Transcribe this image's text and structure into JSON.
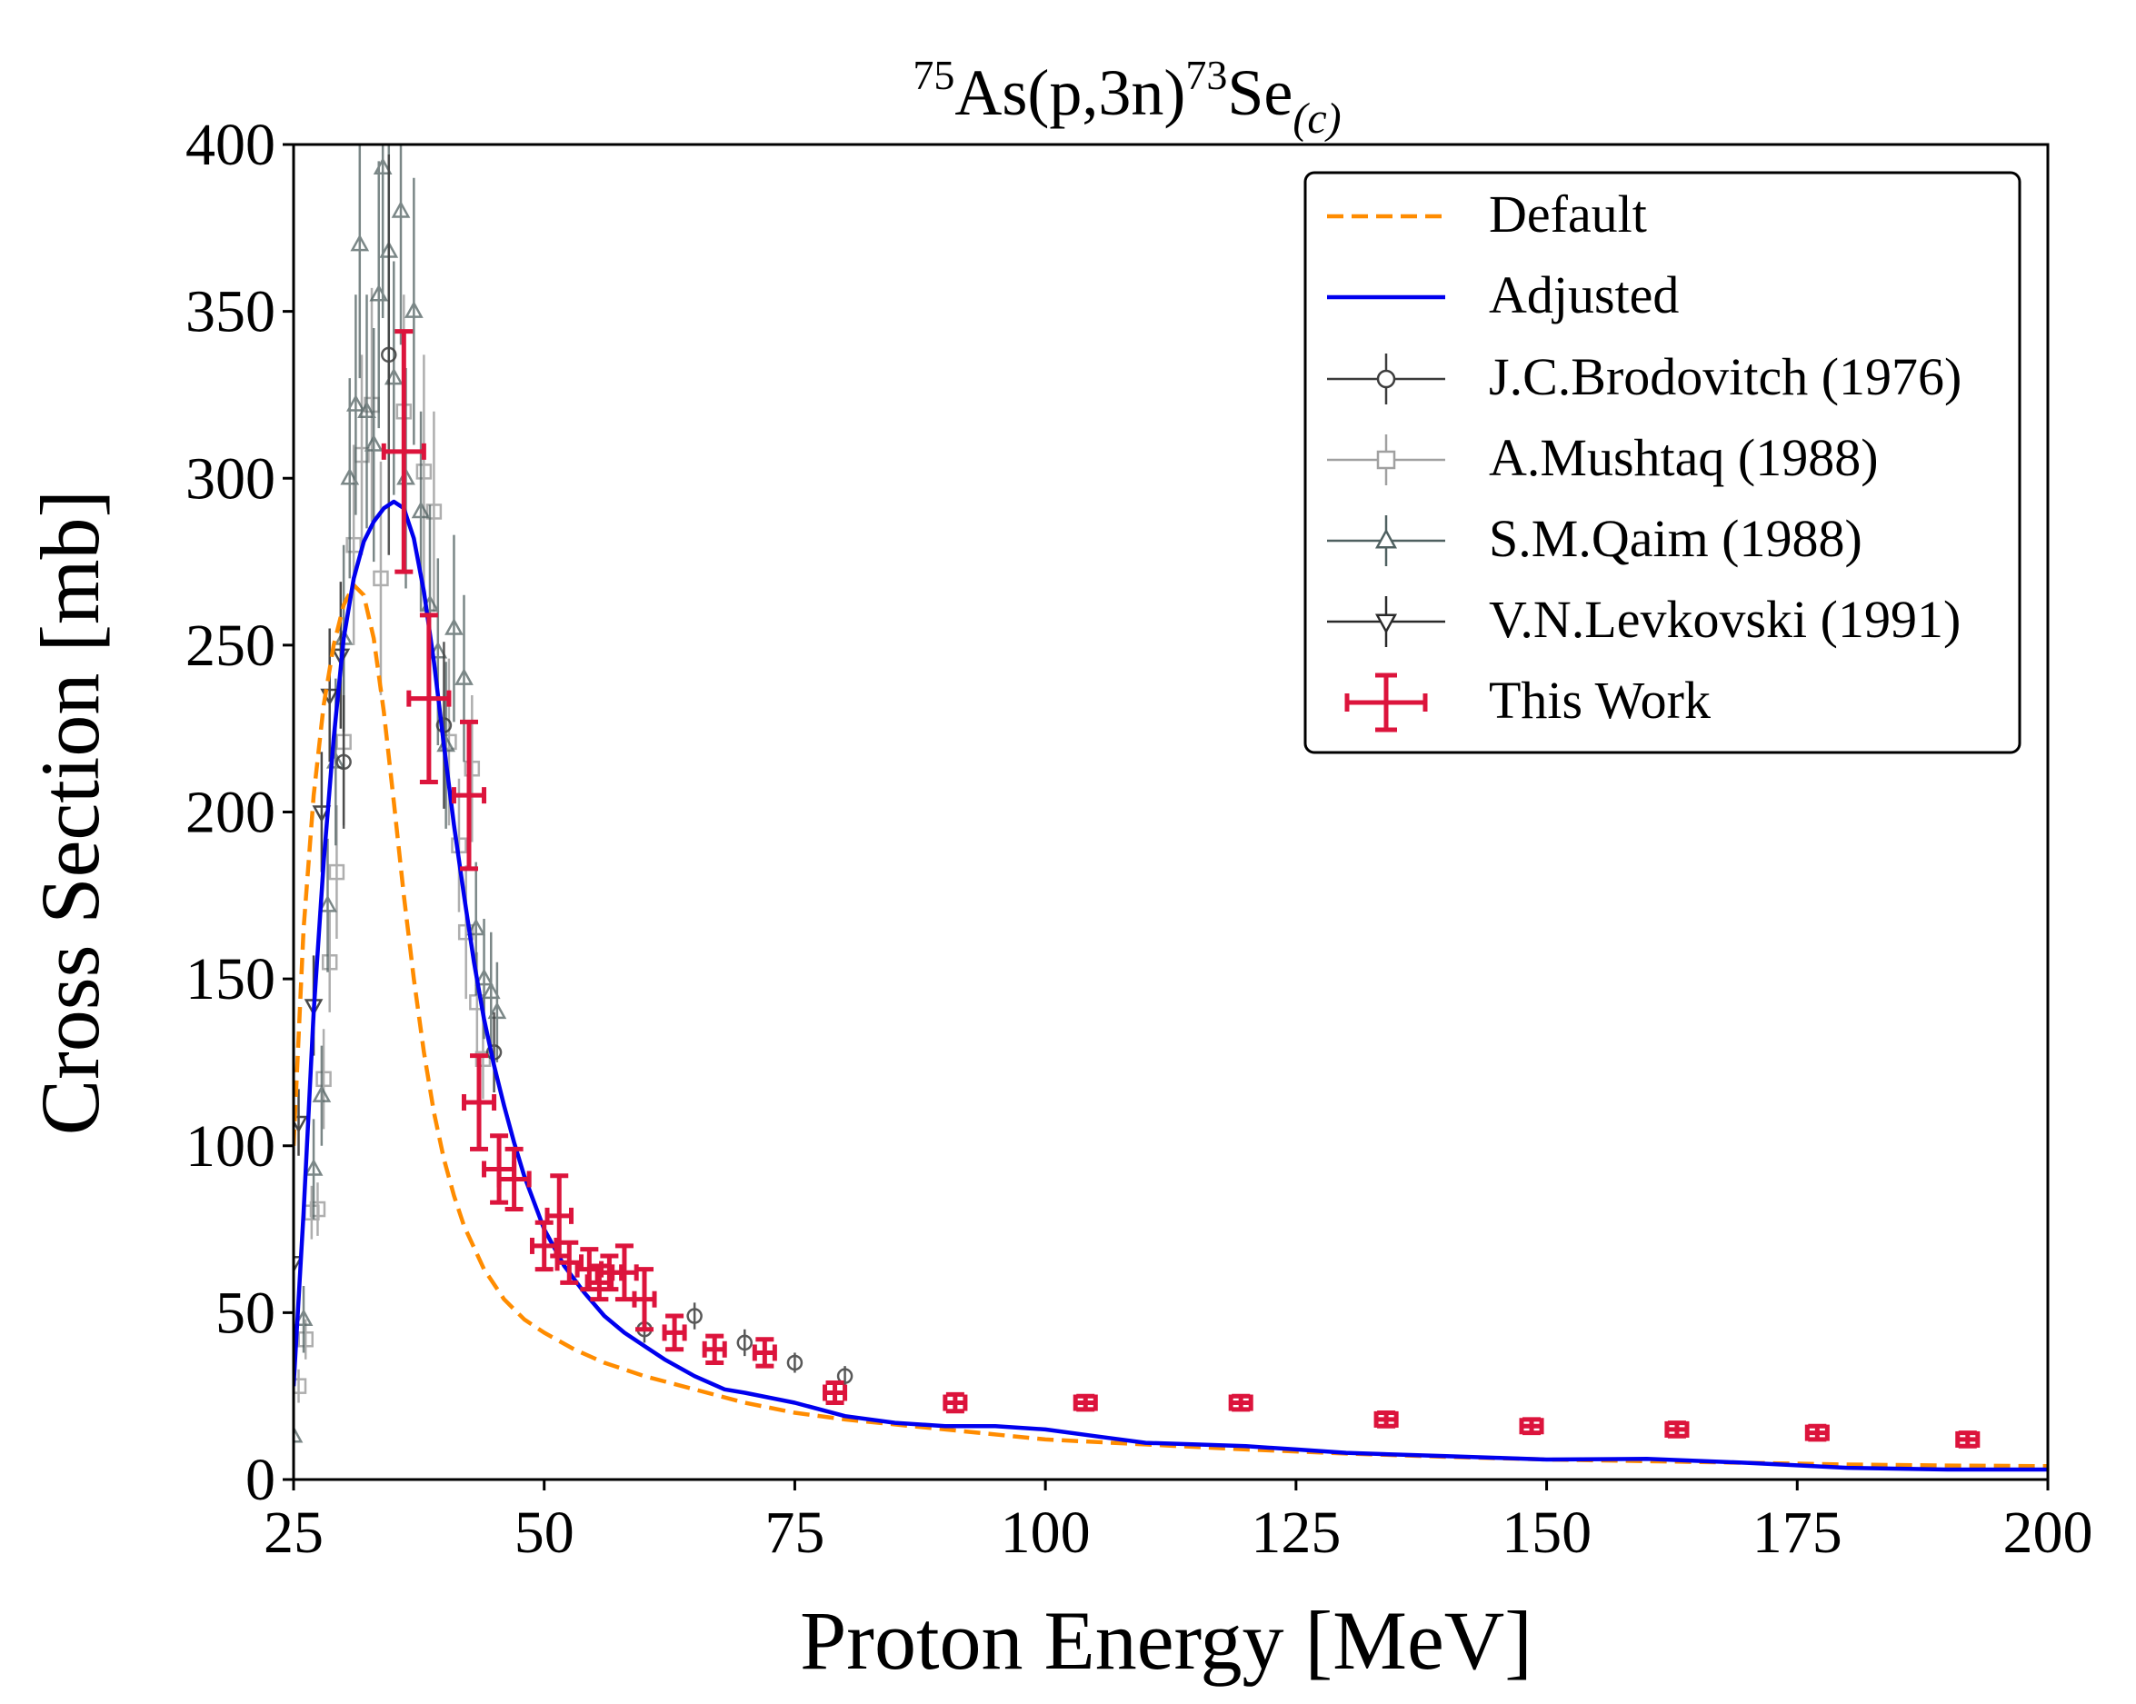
{
  "chart_data": {
    "type": "scatter",
    "title": {
      "prefix_sup": "75",
      "main": "As(p,3n)",
      "mid_sup": "73",
      "elem": "Se",
      "sub": "(c)"
    },
    "xlabel": "Proton Energy [MeV]",
    "ylabel": "Cross Section [mb]",
    "xlim": [
      25,
      200
    ],
    "ylim": [
      0,
      400
    ],
    "xticks": [
      25,
      50,
      75,
      100,
      125,
      150,
      175,
      200
    ],
    "yticks": [
      0,
      50,
      100,
      150,
      200,
      250,
      300,
      350,
      400
    ],
    "grid": false,
    "legend_position": "top-right",
    "legend": [
      {
        "label": "Default",
        "key": "default"
      },
      {
        "label": "Adjusted",
        "key": "adjusted"
      },
      {
        "label": "J.C.Brodovitch (1976)",
        "key": "brodovitch"
      },
      {
        "label": "A.Mushtaq (1988)",
        "key": "mushtaq"
      },
      {
        "label": "S.M.Qaim (1988)",
        "key": "qaim"
      },
      {
        "label": "V.N.Levkovski (1991)",
        "key": "levkovski"
      },
      {
        "label": "This Work",
        "key": "thiswork"
      }
    ],
    "colors": {
      "default": "#ff8c00",
      "adjusted": "#0000ee",
      "brodovitch": "#3c3c3c",
      "mushtaq": "#a0a0a0",
      "qaim": "#4f6060",
      "levkovski": "#2a2a2a",
      "thiswork": "#dc143c"
    },
    "series": [
      {
        "name": "Default",
        "key": "default",
        "style": "dashed",
        "x": [
          25,
          26,
          27,
          28,
          29,
          30,
          31,
          32,
          33,
          34,
          35,
          36,
          37,
          38,
          39,
          40,
          41,
          42,
          44,
          46,
          48,
          50,
          53,
          56,
          60,
          65,
          70,
          75,
          80,
          90,
          100,
          110,
          120,
          130,
          140,
          150,
          160,
          170,
          180,
          190,
          200
        ],
        "y": [
          100,
          165,
          205,
          232,
          250,
          262,
          268,
          265,
          252,
          230,
          203,
          175,
          150,
          128,
          110,
          96,
          85,
          76,
          63,
          54,
          48,
          44,
          39,
          35,
          31,
          27,
          23,
          20,
          18,
          15,
          12,
          10.5,
          9,
          7.8,
          6.8,
          6,
          5.5,
          5,
          4.5,
          4.2,
          4
        ]
      },
      {
        "name": "Adjusted",
        "key": "adjusted",
        "style": "solid",
        "x": [
          25,
          26,
          27,
          28,
          29,
          30,
          31,
          32,
          33,
          34,
          35,
          36,
          37,
          38,
          39,
          40,
          41,
          42,
          43,
          44,
          45,
          46,
          47,
          48,
          50,
          52,
          54,
          56,
          58,
          60,
          62,
          65,
          68,
          70,
          75,
          80,
          85,
          90,
          95,
          100,
          105,
          110,
          115,
          120,
          125,
          130,
          135,
          140,
          145,
          150,
          160,
          170,
          180,
          190,
          200
        ],
        "y": [
          28,
          80,
          140,
          185,
          222,
          252,
          270,
          281,
          287,
          291,
          293,
          291,
          282,
          266,
          245,
          220,
          196,
          175,
          155,
          138,
          124,
          112,
          101,
          91,
          75,
          64,
          56,
          49,
          44,
          40,
          36,
          31,
          27,
          26,
          23,
          19,
          17,
          16,
          16,
          15,
          13,
          11,
          10.5,
          10,
          9,
          8,
          7.5,
          7,
          6.5,
          6,
          6.2,
          5,
          3.5,
          3,
          3
        ]
      },
      {
        "name": "J.C.Brodovitch (1976)",
        "key": "brodovitch",
        "marker": "circle",
        "points": [
          [
            30,
            215,
            20
          ],
          [
            34.5,
            337,
            60
          ],
          [
            40,
            226,
            25
          ],
          [
            45,
            128,
            12
          ],
          [
            60,
            45,
            4
          ],
          [
            65,
            49,
            4
          ],
          [
            70,
            41,
            4
          ],
          [
            75,
            35,
            3
          ],
          [
            80,
            31,
            3
          ]
        ]
      },
      {
        "name": "A.Mushtaq (1988)",
        "key": "mushtaq",
        "marker": "square",
        "points": [
          [
            25.5,
            28,
            5
          ],
          [
            26.2,
            42,
            6
          ],
          [
            26.8,
            80,
            8
          ],
          [
            27.4,
            81,
            8
          ],
          [
            28,
            120,
            15
          ],
          [
            28.6,
            155,
            15
          ],
          [
            29.3,
            182,
            20
          ],
          [
            30,
            221,
            25
          ],
          [
            31,
            280,
            30
          ],
          [
            31.8,
            307,
            30
          ],
          [
            32.8,
            322,
            35
          ],
          [
            33.7,
            270,
            35
          ],
          [
            36,
            320,
            35
          ],
          [
            38,
            302,
            35
          ],
          [
            39,
            290,
            30
          ],
          [
            40.5,
            221,
            25
          ],
          [
            41.5,
            190,
            20
          ],
          [
            42.2,
            164,
            20
          ],
          [
            42.8,
            213,
            22
          ],
          [
            43.3,
            143,
            15
          ],
          [
            43.9,
            126,
            12
          ]
        ]
      },
      {
        "name": "S.M.Qaim (1988)",
        "key": "qaim",
        "marker": "triangle-up",
        "points": [
          [
            25,
            13,
            5
          ],
          [
            26,
            48,
            10
          ],
          [
            27,
            93,
            15
          ],
          [
            27.8,
            115,
            15
          ],
          [
            28.4,
            172,
            20
          ],
          [
            29.2,
            215,
            25
          ],
          [
            30,
            252,
            28
          ],
          [
            30.6,
            300,
            30
          ],
          [
            31.2,
            322,
            33
          ],
          [
            31.6,
            370,
            40
          ],
          [
            32.3,
            320,
            35
          ],
          [
            33,
            310,
            35
          ],
          [
            33.5,
            355,
            40
          ],
          [
            33.9,
            393,
            45
          ],
          [
            34.5,
            368,
            40
          ],
          [
            35,
            330,
            35
          ],
          [
            35.7,
            380,
            40
          ],
          [
            36.2,
            300,
            33
          ],
          [
            37,
            350,
            40
          ],
          [
            37.7,
            290,
            30
          ],
          [
            38.6,
            262,
            30
          ],
          [
            39.4,
            248,
            28
          ],
          [
            40.2,
            220,
            25
          ],
          [
            41,
            255,
            28
          ],
          [
            42,
            240,
            25
          ],
          [
            43.2,
            165,
            20
          ],
          [
            44,
            150,
            18
          ],
          [
            44.7,
            146,
            18
          ],
          [
            45.3,
            140,
            15
          ]
        ]
      },
      {
        "name": "V.N.Levkovski (1991)",
        "key": "levkovski",
        "marker": "triangle-down",
        "points": [
          [
            25,
            65,
            8
          ],
          [
            25.5,
            107,
            10
          ],
          [
            27,
            142,
            15
          ],
          [
            27.8,
            200,
            18
          ],
          [
            28.6,
            235,
            20
          ],
          [
            29.7,
            247,
            22
          ]
        ]
      },
      {
        "name": "This Work",
        "key": "thiswork",
        "marker": "errorbar",
        "points": [
          [
            36,
            308,
            2,
            36
          ],
          [
            38.5,
            234,
            2,
            25
          ],
          [
            42.5,
            205,
            1.5,
            22
          ],
          [
            43.5,
            113,
            1.5,
            14
          ],
          [
            45.5,
            93,
            1.5,
            10
          ],
          [
            47,
            90,
            1.5,
            9
          ],
          [
            51.5,
            79,
            1.2,
            12
          ],
          [
            50,
            70,
            1.2,
            7
          ],
          [
            52.5,
            65,
            1.2,
            6
          ],
          [
            54.5,
            63,
            1.2,
            6
          ],
          [
            55.5,
            59,
            1.2,
            5
          ],
          [
            56.5,
            62,
            1.2,
            5
          ],
          [
            58,
            62,
            1.2,
            8
          ],
          [
            60,
            54,
            1,
            9
          ],
          [
            63,
            44,
            1,
            5
          ],
          [
            67,
            39,
            1,
            4
          ],
          [
            72,
            38,
            1,
            4
          ],
          [
            79,
            26,
            1,
            3
          ],
          [
            91,
            23,
            1,
            2.5
          ],
          [
            104,
            23,
            1,
            2
          ],
          [
            119.5,
            23,
            1,
            2
          ],
          [
            134,
            18,
            1,
            2
          ],
          [
            148.5,
            16,
            1,
            2
          ],
          [
            163,
            15,
            1,
            2
          ],
          [
            177,
            14,
            1,
            2
          ],
          [
            192,
            12,
            1,
            2
          ]
        ]
      }
    ]
  }
}
